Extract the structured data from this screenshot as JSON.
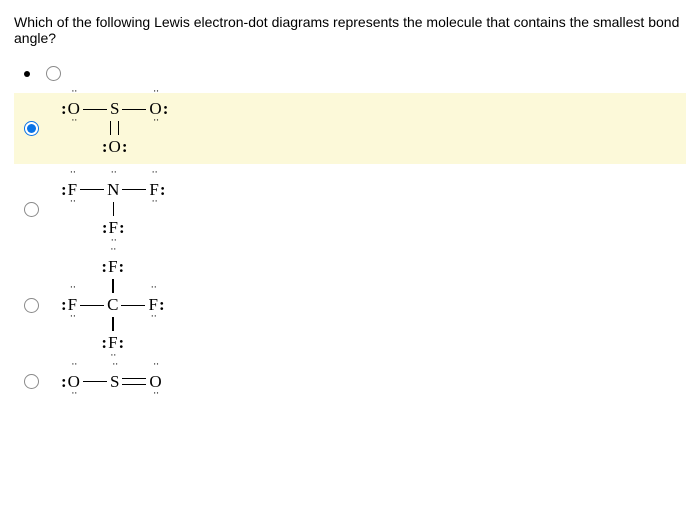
{
  "question": "Which of the following Lewis electron-dot diagrams represents the molecule that contains the smallest bond angle?",
  "options": {
    "a": {
      "selected": false,
      "label": "",
      "highlight": false,
      "dummy": true
    },
    "b": {
      "selected": true,
      "highlight": true,
      "atoms": {
        "o1": "O",
        "s": "S",
        "o2": "O",
        "o3": "O"
      }
    },
    "c": {
      "selected": false,
      "highlight": false,
      "atoms": {
        "f1": "F",
        "n": "N",
        "f2": "F",
        "f3": "F"
      }
    },
    "d": {
      "selected": false,
      "highlight": false,
      "atoms": {
        "f1": "F",
        "c": "C",
        "f2": "F",
        "f3": "F",
        "f4": "F"
      }
    },
    "e": {
      "selected": false,
      "highlight": false,
      "atoms": {
        "o1": "O",
        "s": "S",
        "o2": "O"
      }
    }
  },
  "colors": {
    "highlight": "#fcf9d9",
    "accent": "#0a74e6",
    "text": "#000000",
    "bg": "#ffffff"
  },
  "fonts": {
    "body_size": 14,
    "lewis_size": 17
  }
}
